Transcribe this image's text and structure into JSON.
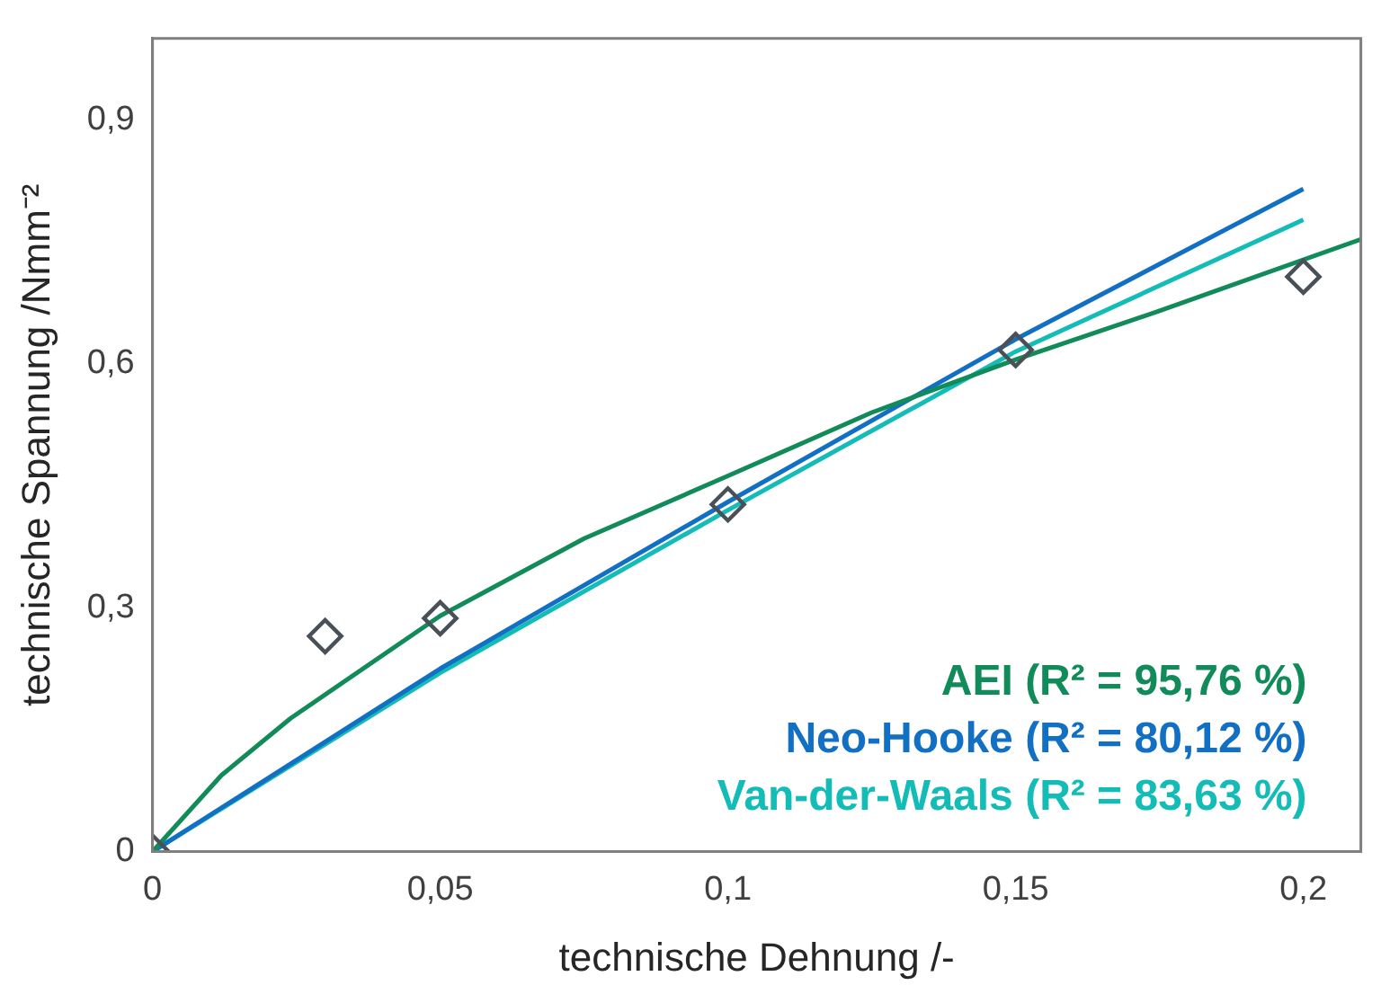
{
  "chart_data": {
    "type": "line",
    "xlabel": "technische Dehnung /-",
    "ylabel": "technische Spannung /Nmm⁻²",
    "xlim": [
      0,
      0.21
    ],
    "ylim": [
      0,
      1
    ],
    "xticks": [
      0,
      {
        "value": 0.05,
        "label": "0,05"
      },
      {
        "value": 0.1,
        "label": "0,1"
      },
      {
        "value": 0.15,
        "label": "0,15"
      },
      {
        "value": 0.2,
        "label": "0,2"
      }
    ],
    "yticks": [
      0,
      {
        "value": 0.3,
        "label": "0,3"
      },
      {
        "value": 0.6,
        "label": "0,6"
      },
      {
        "value": 0.9,
        "label": "0,9"
      }
    ],
    "grid": false,
    "legend": "bottom right",
    "line_style": "solid",
    "series": [
      {
        "name": "AEI (R² = 95,76 %)",
        "color": "#118b5a",
        "x": [
          0,
          0.012,
          0.024,
          0.05,
          0.075,
          0.1,
          0.125,
          0.15,
          0.175,
          0.21
        ],
        "values": [
          0,
          0.094,
          0.164,
          0.29,
          0.385,
          0.462,
          0.54,
          0.605,
          0.665,
          0.753
        ]
      },
      {
        "name": "Neo-Hooke (R² = 80,12 %)",
        "color": "#116fc4",
        "x": [
          0,
          0.05,
          0.1,
          0.15,
          0.2
        ],
        "values": [
          0,
          0.225,
          0.43,
          0.63,
          0.815
        ]
      },
      {
        "name": "Van-der-Waals (R² = 83,63 %)",
        "color": "#13bcb6",
        "x": [
          0,
          0.05,
          0.1,
          0.15,
          0.2
        ],
        "values": [
          0,
          0.22,
          0.42,
          0.615,
          0.777
        ]
      },
      {
        "type": "scatter",
        "marker": "diamond",
        "color": "#4a5058",
        "x": [
          0,
          0.03,
          0.05,
          0.1,
          0.15,
          0.2
        ],
        "values": [
          0,
          0.265,
          0.287,
          0.427,
          0.617,
          0.707
        ]
      }
    ]
  }
}
